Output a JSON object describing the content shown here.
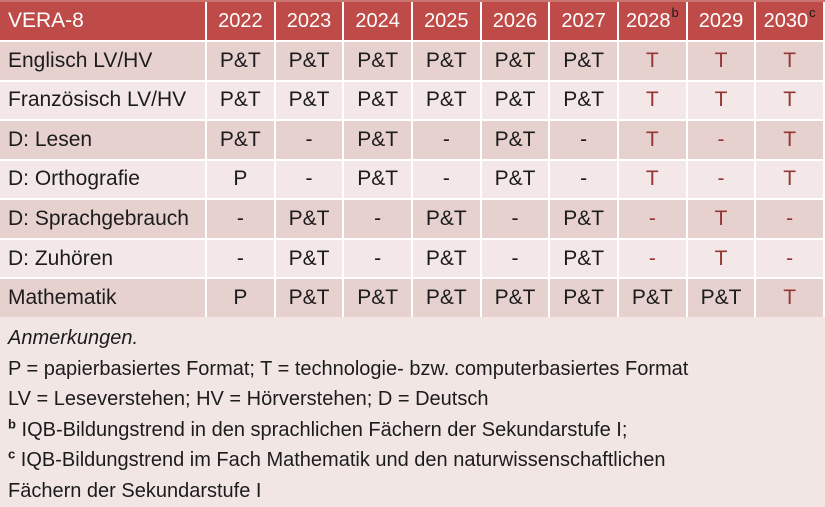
{
  "table": {
    "title": "VERA-8",
    "years": [
      {
        "label": "2022"
      },
      {
        "label": "2023"
      },
      {
        "label": "2024"
      },
      {
        "label": "2025"
      },
      {
        "label": "2026"
      },
      {
        "label": "2027"
      },
      {
        "label": "2028",
        "sup": "b"
      },
      {
        "label": "2029"
      },
      {
        "label": "2030",
        "sup": "c"
      }
    ],
    "rows": [
      {
        "label": "Englisch LV/HV",
        "cells": [
          {
            "v": "P&T"
          },
          {
            "v": "P&T"
          },
          {
            "v": "P&T"
          },
          {
            "v": "P&T"
          },
          {
            "v": "P&T"
          },
          {
            "v": "P&T"
          },
          {
            "v": "T",
            "red": true
          },
          {
            "v": "T",
            "red": true
          },
          {
            "v": "T",
            "red": true
          }
        ]
      },
      {
        "label": "Französisch LV/HV",
        "cells": [
          {
            "v": "P&T"
          },
          {
            "v": "P&T"
          },
          {
            "v": "P&T"
          },
          {
            "v": "P&T"
          },
          {
            "v": "P&T"
          },
          {
            "v": "P&T"
          },
          {
            "v": "T",
            "red": true
          },
          {
            "v": "T",
            "red": true
          },
          {
            "v": "T",
            "red": true
          }
        ]
      },
      {
        "label": "D: Lesen",
        "cells": [
          {
            "v": "P&T"
          },
          {
            "v": "-"
          },
          {
            "v": "P&T"
          },
          {
            "v": "-"
          },
          {
            "v": "P&T"
          },
          {
            "v": "-"
          },
          {
            "v": "T",
            "red": true
          },
          {
            "v": "-",
            "red": true
          },
          {
            "v": "T",
            "red": true
          }
        ]
      },
      {
        "label": "D: Orthografie",
        "cells": [
          {
            "v": "P"
          },
          {
            "v": "-"
          },
          {
            "v": "P&T"
          },
          {
            "v": "-"
          },
          {
            "v": "P&T"
          },
          {
            "v": "-"
          },
          {
            "v": "T",
            "red": true
          },
          {
            "v": "-",
            "red": true
          },
          {
            "v": "T",
            "red": true
          }
        ]
      },
      {
        "label": "D: Sprachgebrauch",
        "cells": [
          {
            "v": "-"
          },
          {
            "v": "P&T"
          },
          {
            "v": "-"
          },
          {
            "v": "P&T"
          },
          {
            "v": "-"
          },
          {
            "v": "P&T"
          },
          {
            "v": "-",
            "red": true
          },
          {
            "v": "T",
            "red": true
          },
          {
            "v": "-",
            "red": true
          }
        ]
      },
      {
        "label": "D: Zuhören",
        "cells": [
          {
            "v": "-"
          },
          {
            "v": "P&T"
          },
          {
            "v": "-"
          },
          {
            "v": "P&T"
          },
          {
            "v": "-"
          },
          {
            "v": "P&T"
          },
          {
            "v": "-",
            "red": true
          },
          {
            "v": "T",
            "red": true
          },
          {
            "v": "-",
            "red": true
          }
        ]
      },
      {
        "label": "Mathematik",
        "cells": [
          {
            "v": "P"
          },
          {
            "v": "P&T"
          },
          {
            "v": "P&T"
          },
          {
            "v": "P&T"
          },
          {
            "v": "P&T"
          },
          {
            "v": "P&T"
          },
          {
            "v": "P&T"
          },
          {
            "v": "P&T"
          },
          {
            "v": "T",
            "red": true
          }
        ]
      }
    ]
  },
  "notes": {
    "lines": [
      {
        "text": "Anmerkungen.",
        "italic": true
      },
      {
        "text": "P = papierbasiertes Format; T = technologie- bzw. computerbasiertes Format"
      },
      {
        "text": "LV = Leseverstehen; HV = Hörverstehen; D = Deutsch"
      },
      {
        "sup": "b",
        "text": "IQB-Bildungstrend in den sprachlichen Fächern der Sekundarstufe I;"
      },
      {
        "sup": "c",
        "text": "IQB-Bildungstrend im Fach Mathematik und den naturwissenschaftlichen"
      },
      {
        "text": "Fächern der Sekundarstufe I"
      }
    ]
  },
  "colors": {
    "header_bg": "#BE4B48",
    "header_border": "#C97471",
    "header_text": "#FFFFFF",
    "band_dark": "#E7D1CF",
    "band_light": "#F3E8E7",
    "notes_bg": "#F2E6E4",
    "accent_text": "#963634",
    "body_text": "#1C1C1C"
  }
}
